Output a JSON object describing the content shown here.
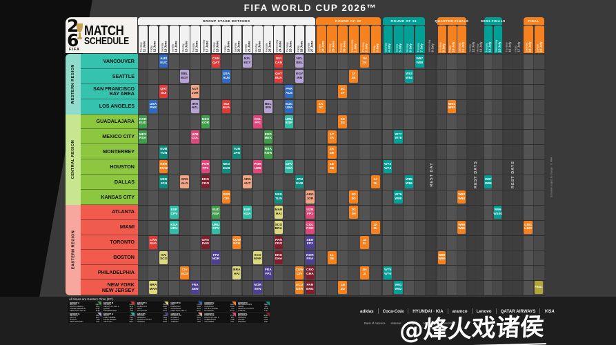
{
  "title": "FIFA WORLD CUP 2026™",
  "logo": {
    "digit_top": "2",
    "digit_bottom": "6",
    "fifa": "FIFA",
    "line1": "MATCH",
    "line2": "SCHEDULE"
  },
  "notes": {
    "times": "All times are Eastern Time (ET).",
    "footnote": "Schedule subject to change · © FIFA"
  },
  "watermark": "@烽火戏诸侯",
  "rest_labels": {
    "single": "REST DAY",
    "multi": "REST DAYS"
  },
  "stages": {
    "group": "GROUP STAGE MATCHES",
    "r32": "ROUND OF 32",
    "r16": "ROUND OF 16",
    "qf": "QUARTER-FINALS",
    "sf": "SEMI-FINALS",
    "final": "FINAL"
  },
  "columns": [
    {
      "day": "Thursday",
      "date": "11 June"
    },
    {
      "day": "Friday",
      "date": "12 June"
    },
    {
      "day": "Saturday",
      "date": "13 June"
    },
    {
      "day": "Sunday",
      "date": "14 June"
    },
    {
      "day": "Monday",
      "date": "15 June"
    },
    {
      "day": "Tuesday",
      "date": "16 June"
    },
    {
      "day": "Wednesday",
      "date": "17 June"
    },
    {
      "day": "Thursday",
      "date": "18 June"
    },
    {
      "day": "Friday",
      "date": "19 June"
    },
    {
      "day": "Saturday",
      "date": "20 June"
    },
    {
      "day": "Sunday",
      "date": "21 June"
    },
    {
      "day": "Monday",
      "date": "22 June"
    },
    {
      "day": "Tuesday",
      "date": "23 June"
    },
    {
      "day": "Wednesday",
      "date": "24 June"
    },
    {
      "day": "Thursday",
      "date": "25 June"
    },
    {
      "day": "Friday",
      "date": "26 June"
    },
    {
      "day": "Saturday",
      "date": "27 June"
    },
    {
      "day": "Sunday",
      "date": "28 June"
    },
    {
      "day": "Monday",
      "date": "29 June"
    },
    {
      "day": "Tuesday",
      "date": "30 June"
    },
    {
      "day": "Wednesday",
      "date": "1 July"
    },
    {
      "day": "Thursday",
      "date": "2 July"
    },
    {
      "day": "Friday",
      "date": "3 July"
    },
    {
      "day": "Saturday",
      "date": "4 July"
    },
    {
      "day": "Sunday",
      "date": "5 July"
    },
    {
      "day": "Monday",
      "date": "6 July"
    },
    {
      "day": "Tuesday",
      "date": "7 July"
    },
    {
      "day": "Wednesday",
      "date": "8 July"
    },
    {
      "day": "Thursday",
      "date": "9 July"
    },
    {
      "day": "Friday",
      "date": "10 July"
    },
    {
      "day": "Saturday",
      "date": "11 July"
    },
    {
      "day": "Sunday",
      "date": "12 July"
    },
    {
      "day": "Monday",
      "date": "13 July"
    },
    {
      "day": "Tuesday",
      "date": "14 July"
    },
    {
      "day": "Wednesday",
      "date": "15 July"
    },
    {
      "day": "Thursday",
      "date": "16 July"
    },
    {
      "day": "Friday",
      "date": "17 July"
    },
    {
      "day": "Saturday",
      "date": "18 July"
    },
    {
      "day": "Sunday",
      "date": "19 July"
    }
  ],
  "regions": [
    {
      "name": "WESTERN REGION",
      "color": "#36c3ad",
      "strip": "#8fdccd",
      "rows": [
        "VANCOUVER",
        "SEATTLE",
        "SAN FRANCISCO|BAY AREA",
        "LOS ANGELES"
      ]
    },
    {
      "name": "CENTRAL REGION",
      "color": "#8dc63f",
      "strip": "#c8e590",
      "rows": [
        "GUADALAJARA",
        "MEXICO CITY",
        "MONTERREY",
        "HOUSTON",
        "DALLAS",
        "KANSAS CITY"
      ]
    },
    {
      "name": "EASTERN REGION",
      "color": "#f15b4d",
      "strip": "#f8a79e",
      "rows": [
        "ATLANTA",
        "MIAMI",
        "TORONTO",
        "BOSTON",
        "PHILADELPHIA",
        "NEW YORK|NEW JERSEY"
      ]
    }
  ],
  "colors": {
    "A": "#3f9e49",
    "B": "#e03a38",
    "C": "#dcd97e",
    "D": "#2e6ac2",
    "E": "#f5821f",
    "F": "#0d8d7f",
    "G": "#b7a4d6",
    "H": "#2fbfa7",
    "I": "#4e3f92",
    "J": "#f2a584",
    "K": "#e0457b",
    "L": "#7e1e2c",
    "R32": "#f5821f",
    "R16": "#00a096",
    "QF": "#f5821f",
    "SF": "#00a096",
    "F3": "#f5821f",
    "FIN": "#b2a639"
  },
  "dark_text_groups": [
    "C",
    "G",
    "J"
  ],
  "matches": [
    {
      "row": 0,
      "col": 3,
      "a": "AUS",
      "b": "EUC",
      "g": "D"
    },
    {
      "row": 0,
      "col": 8,
      "a": "CAN",
      "b": "QAT",
      "g": "B"
    },
    {
      "row": 0,
      "col": 11,
      "a": "NZL",
      "b": "EGY",
      "g": "G"
    },
    {
      "row": 0,
      "col": 14,
      "a": "SUI",
      "b": "CAN",
      "g": "B"
    },
    {
      "row": 0,
      "col": 16,
      "a": "NZL",
      "b": "BEL",
      "g": "G"
    },
    {
      "row": 1,
      "col": 5,
      "a": "BEL",
      "b": "EGY",
      "g": "G"
    },
    {
      "row": 1,
      "col": 9,
      "a": "USA",
      "b": "AUS",
      "g": "D"
    },
    {
      "row": 1,
      "col": 14,
      "a": "QAT",
      "b": "EUA",
      "g": "B"
    },
    {
      "row": 1,
      "col": 16,
      "a": "EGY",
      "b": "IRN",
      "g": "G"
    },
    {
      "row": 2,
      "col": 3,
      "a": "QAT",
      "b": "SUI",
      "g": "B"
    },
    {
      "row": 2,
      "col": 6,
      "a": "AUT",
      "b": "JOR",
      "g": "J"
    },
    {
      "row": 2,
      "col": 15,
      "a": "PAR",
      "b": "AUS",
      "g": "D"
    },
    {
      "row": 3,
      "col": 2,
      "a": "USA",
      "b": "PAR",
      "g": "D"
    },
    {
      "row": 3,
      "col": 6,
      "a": "IRN",
      "b": "NZL",
      "g": "G"
    },
    {
      "row": 3,
      "col": 9,
      "a": "SUI",
      "b": "EUA",
      "g": "B"
    },
    {
      "row": 3,
      "col": 13,
      "a": "BEL",
      "b": "IRN",
      "g": "G"
    },
    {
      "row": 3,
      "col": 15,
      "a": "EUC",
      "b": "USA",
      "g": "D"
    },
    {
      "row": 4,
      "col": 1,
      "a": "KOR",
      "b": "EUD",
      "g": "A"
    },
    {
      "row": 4,
      "col": 7,
      "a": "MEX",
      "b": "KOR",
      "g": "A"
    },
    {
      "row": 4,
      "col": 12,
      "a": "COL",
      "b": "FP1",
      "g": "K"
    },
    {
      "row": 4,
      "col": 15,
      "a": "URU",
      "b": "ESP",
      "g": "H"
    },
    {
      "row": 5,
      "col": 1,
      "a": "MEX",
      "b": "RSA",
      "g": "A"
    },
    {
      "row": 5,
      "col": 6,
      "a": "UZB",
      "b": "COL",
      "g": "K"
    },
    {
      "row": 5,
      "col": 13,
      "a": "EUD",
      "b": "MEX",
      "g": "A"
    },
    {
      "row": 6,
      "col": 3,
      "a": "EUB",
      "b": "TUN",
      "g": "F"
    },
    {
      "row": 6,
      "col": 10,
      "a": "TUN",
      "b": "JPN",
      "g": "F"
    },
    {
      "row": 6,
      "col": 13,
      "a": "RSA",
      "b": "KOR",
      "g": "A"
    },
    {
      "row": 7,
      "col": 3,
      "a": "GER",
      "b": "CUW",
      "g": "E"
    },
    {
      "row": 7,
      "col": 7,
      "a": "POR",
      "b": "FP1",
      "g": "K"
    },
    {
      "row": 7,
      "col": 9,
      "a": "NED",
      "b": "EUB",
      "g": "F"
    },
    {
      "row": 7,
      "col": 12,
      "a": "POR",
      "b": "UZB",
      "g": "K"
    },
    {
      "row": 7,
      "col": 15,
      "a": "CPV",
      "b": "KSA",
      "g": "H"
    },
    {
      "row": 8,
      "col": 3,
      "a": "NED",
      "b": "JPN",
      "g": "F"
    },
    {
      "row": 8,
      "col": 5,
      "a": "ARG",
      "b": "ALG",
      "g": "J"
    },
    {
      "row": 8,
      "col": 7,
      "a": "ENG",
      "b": "CRO",
      "g": "L"
    },
    {
      "row": 8,
      "col": 11,
      "a": "ARG",
      "b": "AUT",
      "g": "J"
    },
    {
      "row": 8,
      "col": 16,
      "a": "JPN",
      "b": "EUB",
      "g": "F"
    },
    {
      "row": 9,
      "col": 9,
      "a": "GER",
      "b": "CIV",
      "g": "E"
    },
    {
      "row": 9,
      "col": 14,
      "a": "NED",
      "b": "TUN",
      "g": "F"
    },
    {
      "row": 9,
      "col": 17,
      "a": "ARG",
      "b": "JOR",
      "g": "J"
    },
    {
      "row": 10,
      "col": 4,
      "a": "ESP",
      "b": "CPV",
      "g": "H"
    },
    {
      "row": 10,
      "col": 8,
      "a": "EUD",
      "b": "RSA",
      "g": "A"
    },
    {
      "row": 10,
      "col": 11,
      "a": "ESP",
      "b": "KSA",
      "g": "H"
    },
    {
      "row": 10,
      "col": 14,
      "a": "MAR",
      "b": "HAI",
      "g": "C"
    },
    {
      "row": 10,
      "col": 17,
      "a": "UZB",
      "b": "FP1",
      "g": "K"
    },
    {
      "row": 11,
      "col": 4,
      "a": "KSA",
      "b": "URU",
      "g": "H"
    },
    {
      "row": 11,
      "col": 8,
      "a": "URU",
      "b": "CPV",
      "g": "H"
    },
    {
      "row": 11,
      "col": 14,
      "a": "SCO",
      "b": "BRA",
      "g": "C"
    },
    {
      "row": 11,
      "col": 17,
      "a": "COL",
      "b": "POR",
      "g": "K"
    },
    {
      "row": 12,
      "col": 2,
      "a": "CAN",
      "b": "EUA",
      "g": "B"
    },
    {
      "row": 12,
      "col": 7,
      "a": "GHA",
      "b": "PAN",
      "g": "L"
    },
    {
      "row": 12,
      "col": 10,
      "a": "CUW",
      "b": "ECU",
      "g": "E"
    },
    {
      "row": 12,
      "col": 14,
      "a": "PAN",
      "b": "CRO",
      "g": "L"
    },
    {
      "row": 12,
      "col": 17,
      "a": "SEN",
      "b": "FP2",
      "g": "I"
    },
    {
      "row": 13,
      "col": 3,
      "a": "HAI",
      "b": "SCO",
      "g": "C"
    },
    {
      "row": 13,
      "col": 8,
      "a": "FP2",
      "b": "NOR",
      "g": "I"
    },
    {
      "row": 13,
      "col": 12,
      "a": "SCO",
      "b": "MAR",
      "g": "C"
    },
    {
      "row": 13,
      "col": 14,
      "a": "ENG",
      "b": "GHA",
      "g": "L"
    },
    {
      "row": 13,
      "col": 17,
      "a": "NOR",
      "b": "FRA",
      "g": "I"
    },
    {
      "row": 14,
      "col": 5,
      "a": "CIV",
      "b": "ECU",
      "g": "E"
    },
    {
      "row": 14,
      "col": 10,
      "a": "BRA",
      "b": "HAI",
      "g": "C"
    },
    {
      "row": 14,
      "col": 13,
      "a": "FRA",
      "b": "FP2",
      "g": "I"
    },
    {
      "row": 14,
      "col": 16,
      "a": "CUW",
      "b": "CIV",
      "g": "E"
    },
    {
      "row": 14,
      "col": 17,
      "a": "CRO",
      "b": "GHA",
      "g": "L"
    },
    {
      "row": 15,
      "col": 2,
      "a": "BRA",
      "b": "MAR",
      "g": "C"
    },
    {
      "row": 15,
      "col": 6,
      "a": "FRA",
      "b": "SEN",
      "g": "I"
    },
    {
      "row": 15,
      "col": 12,
      "a": "NOR",
      "b": "SEN",
      "g": "I"
    },
    {
      "row": 15,
      "col": 16,
      "a": "ECU",
      "b": "GER",
      "g": "E"
    },
    {
      "row": 15,
      "col": 17,
      "a": "PAN",
      "b": "ENG",
      "g": "L"
    },
    {
      "row": 0,
      "col": 22,
      "a": "1H",
      "b": "2K",
      "g": "R32"
    },
    {
      "row": 0,
      "col": 27,
      "a": "W87",
      "b": "W88",
      "g": "R16"
    },
    {
      "row": 1,
      "col": 21,
      "a": "1F",
      "b": "2E",
      "g": "R32"
    },
    {
      "row": 1,
      "col": 26,
      "a": "W83",
      "b": "W84",
      "g": "R16"
    },
    {
      "row": 2,
      "col": 20,
      "a": "2C",
      "b": "2F",
      "g": "R32"
    },
    {
      "row": 3,
      "col": 18,
      "a": "1A",
      "b": "3C",
      "g": "R32"
    },
    {
      "row": 3,
      "col": 30,
      "a": "W91",
      "b": "W92",
      "g": "QF"
    },
    {
      "row": 4,
      "col": 20,
      "a": "1D",
      "b": "3G",
      "g": "R32"
    },
    {
      "row": 5,
      "col": 19,
      "a": "1C",
      "b": "3A",
      "g": "R32"
    },
    {
      "row": 5,
      "col": 25,
      "a": "W77",
      "b": "W78",
      "g": "R16"
    },
    {
      "row": 6,
      "col": 19,
      "a": "2A",
      "b": "2B",
      "g": "R32"
    },
    {
      "row": 7,
      "col": 19,
      "a": "1E",
      "b": "3B",
      "g": "R32"
    },
    {
      "row": 7,
      "col": 24,
      "a": "W73",
      "b": "W74",
      "g": "R16"
    },
    {
      "row": 8,
      "col": 23,
      "a": "1J",
      "b": "3K",
      "g": "R32"
    },
    {
      "row": 8,
      "col": 26,
      "a": "W85",
      "b": "W86",
      "g": "R16"
    },
    {
      "row": 8,
      "col": 34,
      "a": "W97",
      "b": "W98",
      "g": "SF"
    },
    {
      "row": 9,
      "col": 21,
      "a": "2D",
      "b": "2G",
      "g": "R32"
    },
    {
      "row": 9,
      "col": 25,
      "a": "W79",
      "b": "W80",
      "g": "R16"
    },
    {
      "row": 9,
      "col": 31,
      "a": "W93",
      "b": "W94",
      "g": "QF"
    },
    {
      "row": 10,
      "col": 21,
      "a": "1G",
      "b": "3H",
      "g": "R32"
    },
    {
      "row": 10,
      "col": 35,
      "a": "W99",
      "b": "W100",
      "g": "SF"
    },
    {
      "row": 11,
      "col": 23,
      "a": "1K",
      "b": "2L",
      "g": "R32"
    },
    {
      "row": 11,
      "col": 31,
      "a": "W95",
      "b": "W96",
      "g": "QF"
    },
    {
      "row": 11,
      "col": 38,
      "a": "L101",
      "b": "L102",
      "g": "F3"
    },
    {
      "row": 12,
      "col": 22,
      "a": "1I",
      "b": "3J",
      "g": "R32"
    },
    {
      "row": 13,
      "col": 19,
      "a": "1L",
      "b": "3E",
      "g": "R32"
    },
    {
      "row": 13,
      "col": 29,
      "a": "W89",
      "b": "W90",
      "g": "QF"
    },
    {
      "row": 14,
      "col": 22,
      "a": "2H",
      "b": "2I",
      "g": "R32"
    },
    {
      "row": 14,
      "col": 24,
      "a": "W75",
      "b": "W76",
      "g": "R16"
    },
    {
      "row": 15,
      "col": 20,
      "a": "1B",
      "b": "3D",
      "g": "R32"
    },
    {
      "row": 15,
      "col": 25,
      "a": "W81",
      "b": "W82",
      "g": "R16"
    },
    {
      "row": 15,
      "col": 39,
      "a": "FINAL",
      "b": "",
      "g": "FIN"
    }
  ],
  "legend": [
    {
      "group": "GROUP A",
      "color": "#3f9e49",
      "teams": [
        [
          "MEXICO",
          "MEX"
        ],
        [
          "SOUTH AFRICA",
          "RSA"
        ],
        [
          "KOREA REPUBLIC",
          "KOR"
        ],
        [
          "UEFA PLAY-OFF D",
          "EUD"
        ]
      ]
    },
    {
      "group": "GROUP B",
      "color": "#e03a38",
      "teams": [
        [
          "CANADA",
          "CAN"
        ],
        [
          "UEFA PLAY-OFF A",
          "EUA"
        ],
        [
          "QATAR",
          "QAT"
        ],
        [
          "SWITZERLAND",
          "SUI"
        ]
      ]
    },
    {
      "group": "GROUP C",
      "color": "#dcd97e",
      "teams": [
        [
          "BRAZIL",
          "BRA"
        ],
        [
          "MOROCCO",
          "MAR"
        ],
        [
          "HAITI",
          "HAI"
        ],
        [
          "SCOTLAND",
          "SCO"
        ]
      ]
    },
    {
      "group": "GROUP D",
      "color": "#2e6ac2",
      "teams": [
        [
          "USA",
          "USA"
        ],
        [
          "PARAGUAY",
          "PAR"
        ],
        [
          "AUSTRALIA",
          "AUS"
        ],
        [
          "UEFA PLAY-OFF C",
          "EUC"
        ]
      ]
    },
    {
      "group": "GROUP E",
      "color": "#f5821f",
      "teams": [
        [
          "GERMANY",
          "GER"
        ],
        [
          "CURACAO",
          "CUW"
        ],
        [
          "COTE D'IVOIRE",
          "CIV"
        ],
        [
          "ECUADOR",
          "ECU"
        ]
      ]
    },
    {
      "group": "GROUP F",
      "color": "#0d8d7f",
      "teams": [
        [
          "NETHERLANDS",
          "NED"
        ],
        [
          "JAPAN",
          "JPN"
        ],
        [
          "UEFA PLAY-OFF B",
          "EUB"
        ],
        [
          "TUNISIA",
          "TUN"
        ]
      ]
    },
    {
      "group": "GROUP G",
      "color": "#b7a4d6",
      "teams": [
        [
          "BELGIUM",
          "BEL"
        ],
        [
          "EGYPT",
          "EGY"
        ],
        [
          "IR IRAN",
          "IRN"
        ],
        [
          "NEW ZEALAND",
          "NZL"
        ]
      ]
    },
    {
      "group": "GROUP H",
      "color": "#2fbfa7",
      "teams": [
        [
          "SPAIN",
          "ESP"
        ],
        [
          "CABO VERDE",
          "CPV"
        ],
        [
          "SAUDI ARABIA",
          "KSA"
        ],
        [
          "URUGUAY",
          "URU"
        ]
      ]
    },
    {
      "group": "GROUP I",
      "color": "#4e3f92",
      "teams": [
        [
          "FRANCE",
          "FRA"
        ],
        [
          "SENEGAL",
          "SEN"
        ],
        [
          "FIFA PLAY-OFF 2",
          "FP2"
        ],
        [
          "NORWAY",
          "NOR"
        ]
      ]
    },
    {
      "group": "GROUP J",
      "color": "#f2a584",
      "teams": [
        [
          "ARGENTINA",
          "ARG"
        ],
        [
          "ALGERIA",
          "ALG"
        ],
        [
          "AUSTRIA",
          "AUT"
        ],
        [
          "JORDAN",
          "JOR"
        ]
      ]
    },
    {
      "group": "GROUP K",
      "color": "#e0457b",
      "teams": [
        [
          "PORTUGAL",
          "POR"
        ],
        [
          "FIFA PLAY-OFF 1",
          "FP1"
        ],
        [
          "UZBEKISTAN",
          "UZB"
        ],
        [
          "COLOMBIA",
          "COL"
        ]
      ]
    },
    {
      "group": "GROUP L",
      "color": "#7e1e2c",
      "teams": [
        [
          "ENGLAND",
          "ENG"
        ],
        [
          "CROATIA",
          "CRO"
        ],
        [
          "GHANA",
          "GHA"
        ],
        [
          "PANAMA",
          "PAN"
        ]
      ]
    }
  ],
  "sponsors": {
    "row1": [
      "adidas",
      "Coca-Cola",
      "HYUNDAI · KIA",
      "aramco",
      "Lenovo",
      "QATAR AIRWAYS",
      "VISA"
    ],
    "row2": [
      "Bank of America",
      "Hisense",
      "Mengniu",
      "McDonald's",
      "Verizon"
    ]
  }
}
